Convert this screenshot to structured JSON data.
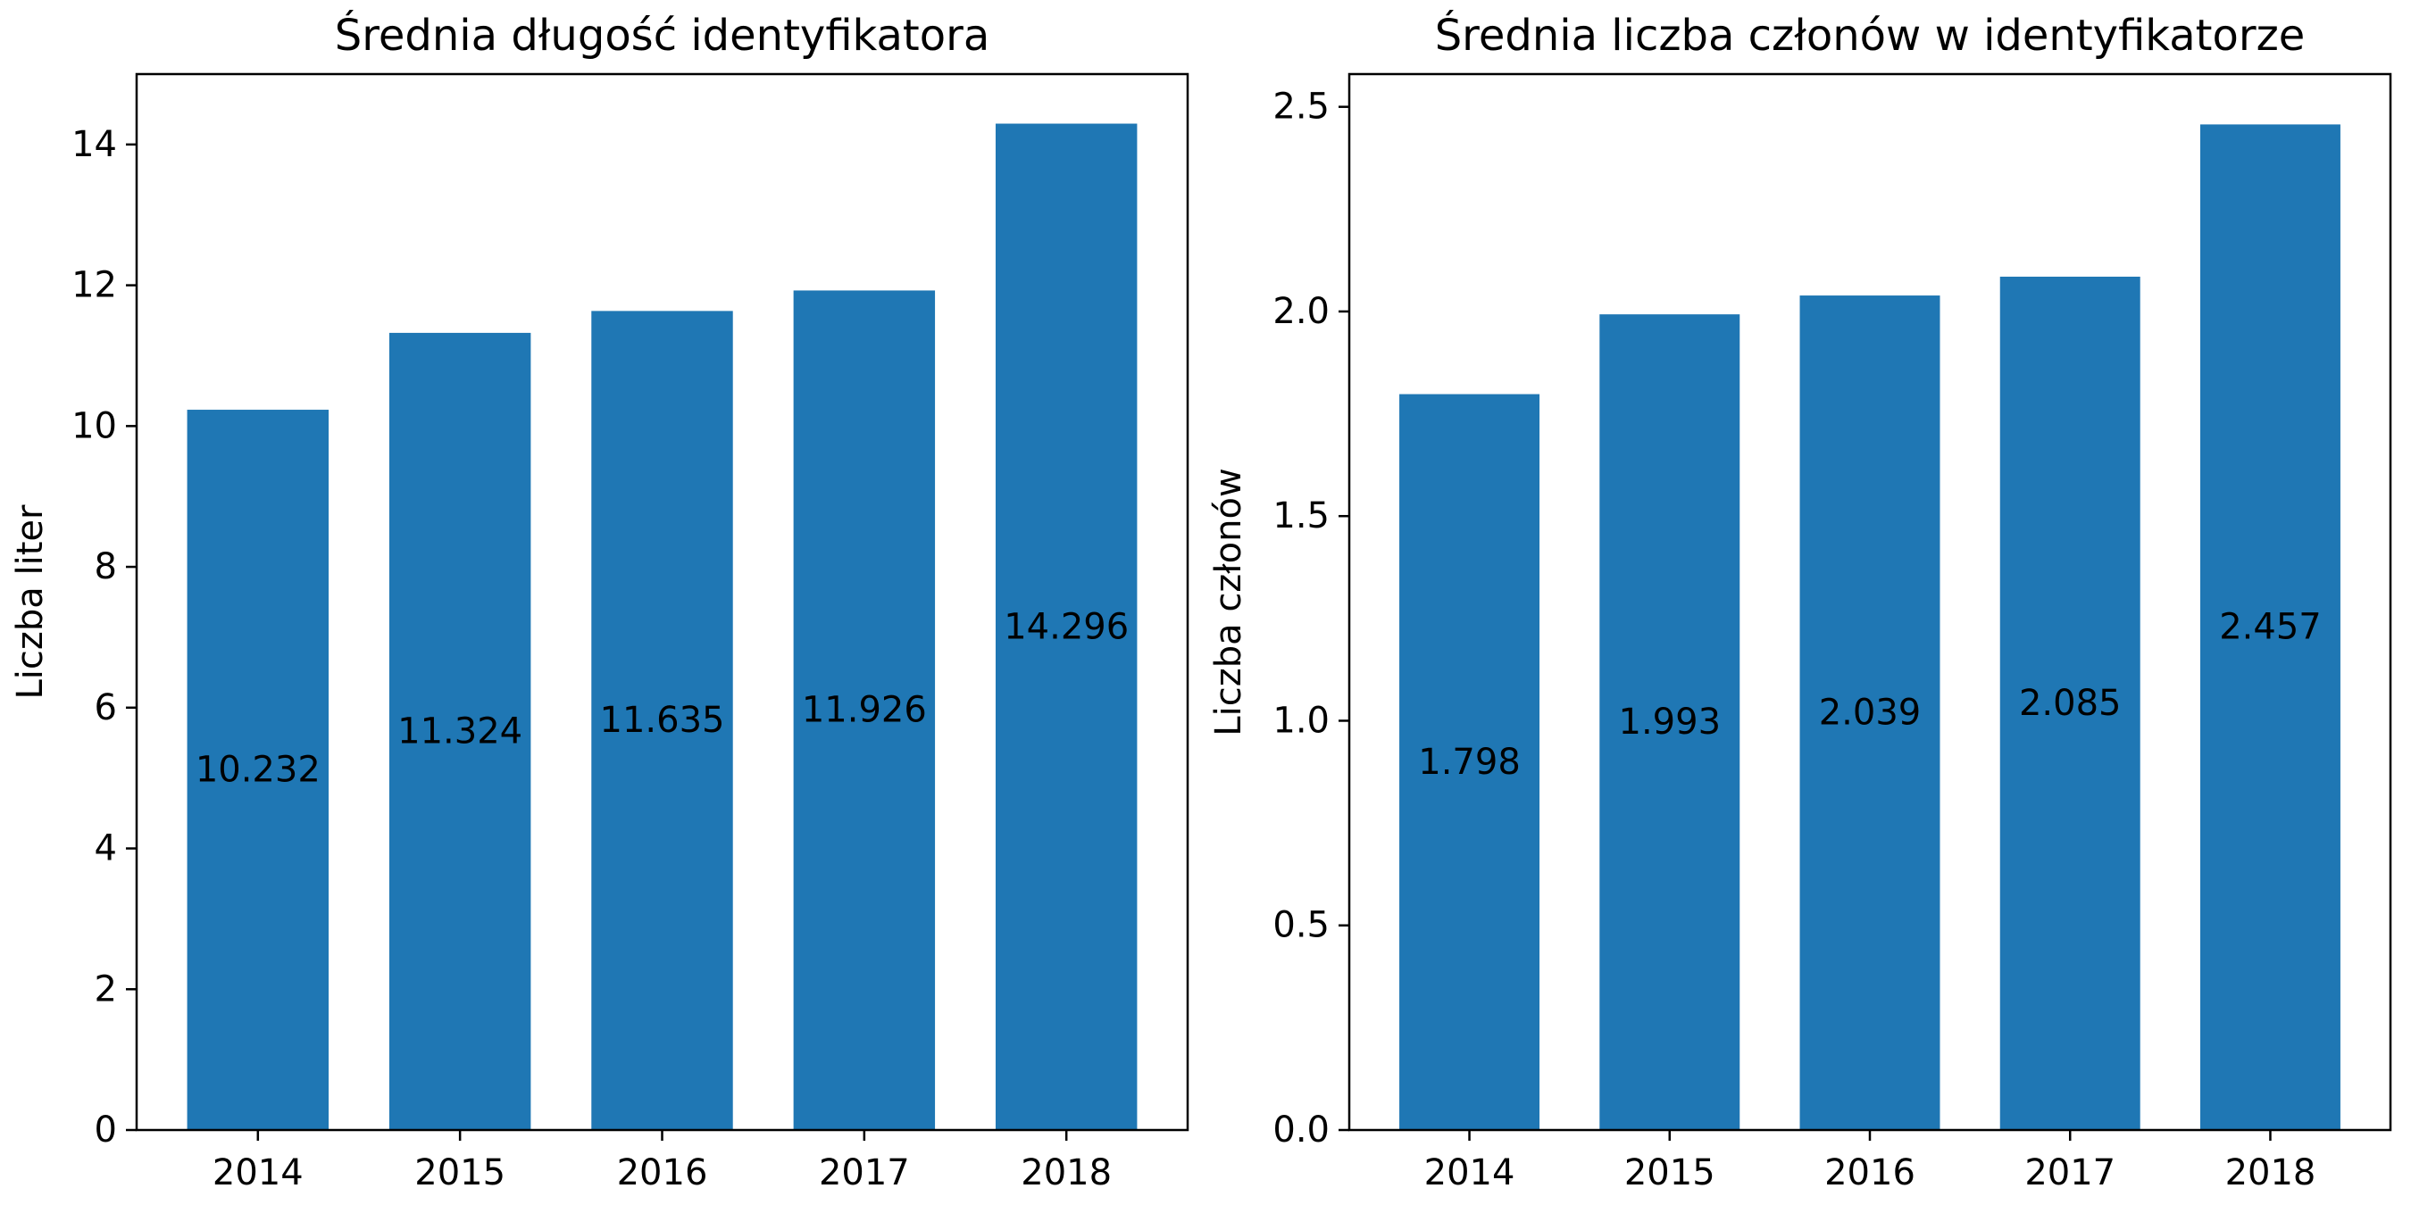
{
  "colors": {
    "bar": "#1f77b4",
    "axis": "#000000",
    "text": "#000000",
    "background": "#ffffff"
  },
  "chart_data": [
    {
      "type": "bar",
      "title": "Średnia długość identyfikatora",
      "xlabel": "",
      "ylabel": "Liczba liter",
      "categories": [
        "2014",
        "2015",
        "2016",
        "2017",
        "2018"
      ],
      "values": [
        10.232,
        11.324,
        11.635,
        11.926,
        14.296
      ],
      "value_labels": [
        "10.232",
        "11.324",
        "11.635",
        "11.926",
        "14.296"
      ],
      "ylim": [
        0,
        15
      ],
      "yticks": [
        0,
        2,
        4,
        6,
        8,
        10,
        12,
        14
      ],
      "ytick_labels": [
        "0",
        "2",
        "4",
        "6",
        "8",
        "10",
        "12",
        "14"
      ],
      "grid": false,
      "legend": "none",
      "data_label_position": "center"
    },
    {
      "type": "bar",
      "title": "Średnia liczba członów w identyfikatorze",
      "xlabel": "",
      "ylabel": "Liczba członów",
      "categories": [
        "2014",
        "2015",
        "2016",
        "2017",
        "2018"
      ],
      "values": [
        1.798,
        1.993,
        2.039,
        2.085,
        2.457
      ],
      "value_labels": [
        "1.798",
        "1.993",
        "2.039",
        "2.085",
        "2.457"
      ],
      "ylim": [
        0,
        2.58
      ],
      "yticks": [
        0,
        0.5,
        1.0,
        1.5,
        2.0,
        2.5
      ],
      "ytick_labels": [
        "0.0",
        "0.5",
        "1.0",
        "1.5",
        "2.0",
        "2.5"
      ],
      "grid": false,
      "legend": "none",
      "data_label_position": "center"
    }
  ]
}
